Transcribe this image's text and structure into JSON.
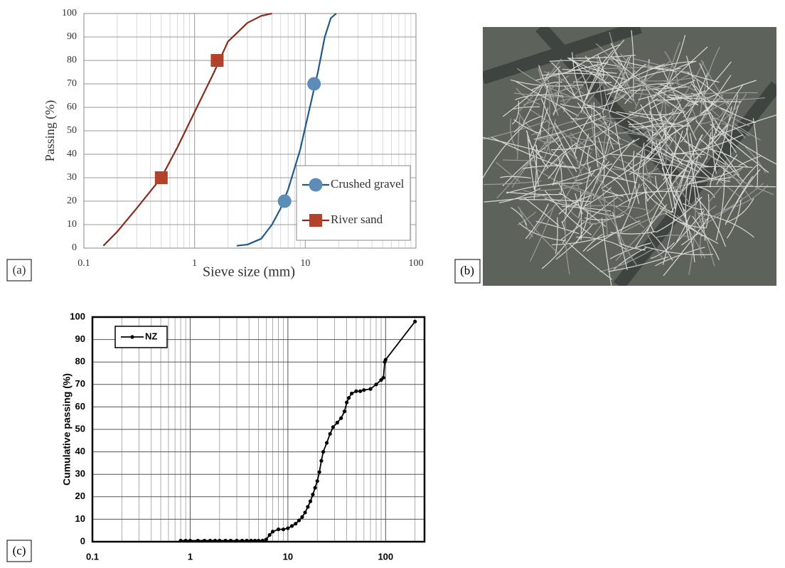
{
  "chart_data": [
    {
      "type": "line",
      "panel_label": "(a)",
      "x_label": "Sieve size (mm)",
      "y_label": "Passing (%)",
      "log_x": true,
      "grid": true,
      "minor_grid": true,
      "legend": "lower right",
      "xlim": [
        0.1,
        100
      ],
      "xticks": [
        0.1,
        1,
        10,
        100
      ],
      "ylim": [
        0,
        100
      ],
      "yticks": [
        0,
        10,
        20,
        30,
        40,
        50,
        60,
        70,
        80,
        90,
        100
      ],
      "series": [
        {
          "name": "Crushed gravel",
          "color": "#1f5a8c",
          "marker_color": "#5b8db8",
          "marker": "circle",
          "x": [
            2.4,
            3,
            4,
            5,
            6,
            7,
            9,
            11,
            13,
            15,
            17,
            19
          ],
          "values": [
            1,
            1.5,
            4,
            10,
            17,
            25,
            42,
            60,
            75,
            90,
            98,
            100
          ],
          "marker_x": [
            6.5,
            12
          ],
          "marker_values": [
            20,
            70
          ]
        },
        {
          "name": "River sand",
          "color": "#8b2a1a",
          "marker_color": "#b0432a",
          "marker": "square",
          "x": [
            0.15,
            0.2,
            0.3,
            0.5,
            0.7,
            1,
            1.5,
            2,
            3,
            4,
            5
          ],
          "values": [
            1,
            7,
            17,
            30,
            43,
            58,
            75,
            88,
            96,
            99,
            100
          ],
          "marker_x": [
            0.5,
            1.6
          ],
          "marker_values": [
            30,
            80
          ]
        }
      ]
    },
    {
      "type": "line",
      "panel_label": "(c)",
      "y_label": "Cumulative passing (%)",
      "log_x": true,
      "grid": true,
      "minor_grid": true,
      "legend": "upper left",
      "xlim": [
        0.1,
        250
      ],
      "xticks": [
        0.1,
        1,
        10,
        100
      ],
      "ylim": [
        0,
        100
      ],
      "yticks": [
        0,
        10,
        20,
        30,
        40,
        50,
        60,
        70,
        80,
        90,
        100
      ],
      "series": [
        {
          "name": "NZ",
          "color": "#000000",
          "marker_color": "#000000",
          "marker": "dot",
          "x": [
            0.8,
            0.9,
            1,
            1.2,
            1.4,
            1.6,
            1.8,
            2,
            2.3,
            2.6,
            3,
            3.4,
            3.8,
            4.2,
            4.6,
            5,
            5.5,
            6,
            6.5,
            7,
            8,
            9,
            10,
            11,
            12,
            13,
            14,
            15,
            16,
            17,
            18,
            19,
            20,
            21,
            22,
            23,
            25,
            27,
            29,
            32,
            35,
            38,
            40,
            42,
            45,
            50,
            55,
            60,
            70,
            80,
            90,
            95,
            98,
            100,
            200
          ],
          "values": [
            0.5,
            0.5,
            0.5,
            0.5,
            0.5,
            0.5,
            0.5,
            0.5,
            0.5,
            0.5,
            0.5,
            0.5,
            0.5,
            0.5,
            0.5,
            0.5,
            0.5,
            1,
            3,
            4.5,
            5.5,
            5.5,
            6,
            7,
            8,
            9.5,
            11,
            13,
            15.5,
            18,
            21,
            24,
            27,
            31,
            36,
            40,
            44,
            48,
            51,
            53,
            55,
            58,
            62,
            64,
            66,
            67,
            67,
            67.5,
            68,
            70,
            72,
            73,
            80,
            81,
            98
          ]
        }
      ]
    }
  ],
  "photo": {
    "panel_label": "(b)"
  }
}
